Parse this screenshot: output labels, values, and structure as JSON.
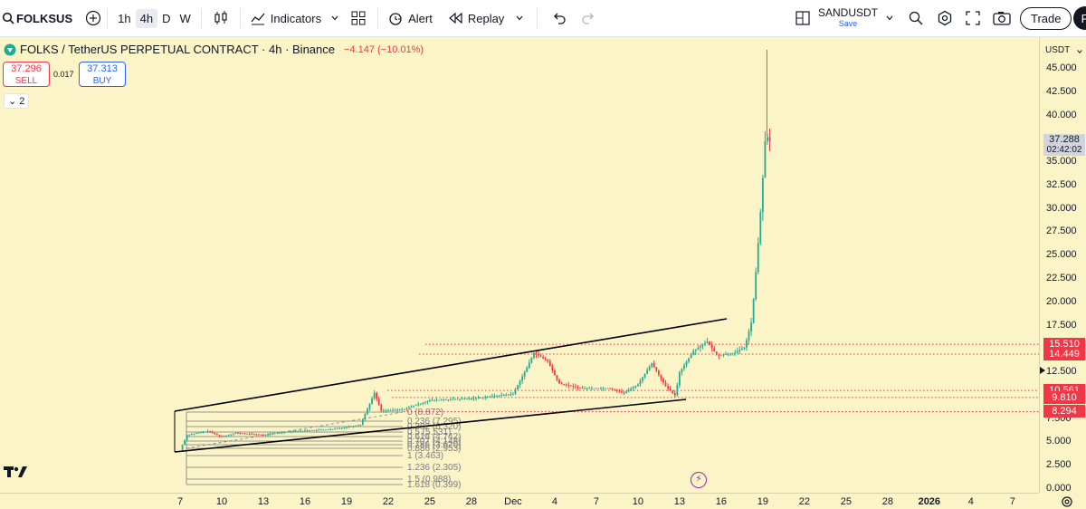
{
  "toolbar": {
    "symbol": "FOLKSUS",
    "intervals": [
      "1h",
      "4h",
      "D",
      "W"
    ],
    "active_interval": "4h",
    "indicators_label": "Indicators",
    "alert_label": "Alert",
    "replay_label": "Replay",
    "layout_name": "SANDUSDT",
    "layout_status": "Save",
    "trade_label": "Trade",
    "avatar_letter": "P"
  },
  "legend": {
    "title": "FOLKS / TetherUS PERPETUAL CONTRACT · 4h · Binance",
    "change": "−4.147 (−10.01%)",
    "sell_price": "37.296",
    "sell_label": "SELL",
    "spread": "0.017",
    "buy_price": "37.313",
    "buy_label": "BUY",
    "collapsed_count": "2"
  },
  "price_axis": {
    "currency": "USDT",
    "ticks": [
      "45.000",
      "42.500",
      "40.000",
      "37.500",
      "35.000",
      "32.500",
      "30.000",
      "27.500",
      "25.000",
      "22.500",
      "20.000",
      "17.500",
      "15.000",
      "12.500",
      "10.000",
      "7.500",
      "5.000",
      "2.500",
      "0.000"
    ],
    "tick_values": [
      45,
      42.5,
      40,
      37.5,
      35,
      32.5,
      30,
      27.5,
      25,
      22.5,
      20,
      17.5,
      15,
      12.5,
      10,
      7.5,
      5,
      2.5,
      0
    ],
    "current_price": "37.288",
    "countdown": "02:42:02",
    "level_tags": [
      {
        "label": "15.510",
        "value": 15.51
      },
      {
        "label": "14.449",
        "value": 14.449
      },
      {
        "label": "10.561",
        "value": 10.561
      },
      {
        "label": "9.810",
        "value": 9.81
      },
      {
        "label": "8.294",
        "value": 8.294
      }
    ]
  },
  "time_axis": {
    "labels": [
      "7",
      "10",
      "13",
      "16",
      "19",
      "22",
      "25",
      "28",
      "Dec",
      "4",
      "7",
      "10",
      "13",
      "16",
      "19",
      "22",
      "25",
      "28",
      "2026",
      "4",
      "7"
    ]
  },
  "fib_labels": [
    "0 (8.872)",
    "0.236 (7.295)",
    "0.382 (6.320)",
    "0.5 (5.531)",
    "0.618 (4.742)",
    "0.707 (4.148)",
    "0.786 (3.620)",
    "0.886 (2.953)",
    "1 (3.463)",
    "1.236 (2.305)",
    "1.5 (0.988)",
    "1.618 (0.399)"
  ],
  "colors": {
    "background": "#fbf4c7",
    "up": "#22ab94",
    "down": "#f23645",
    "level": "#f23645",
    "trendline": "#000000"
  },
  "chart_data": {
    "type": "line",
    "title": "FOLKS / TetherUS PERPETUAL CONTRACT · 4h · Binance",
    "xlabel": "",
    "ylabel": "",
    "ylim": [
      0,
      47.5
    ],
    "x_unit": "date (Nov 2025 – Jan 2026)",
    "series": [
      {
        "x": [
          "Nov 7",
          "Nov 9",
          "Nov 12",
          "Nov 15",
          "Nov 18",
          "Nov 21",
          "Nov 21.5",
          "Nov 24",
          "Nov 27",
          "Nov 30",
          "Dec 1",
          "Dec 2",
          "Dec 3",
          "Dec 5",
          "Dec 8",
          "Dec 9",
          "Dec 10",
          "Dec 11",
          "Dec 12",
          "Dec 13",
          "Dec 13.5",
          "Dec 14",
          "Dec 14.3"
        ],
        "values": [
          4.2,
          6.0,
          5.7,
          6.2,
          6.3,
          7.0,
          10.3,
          8.8,
          9.5,
          9.6,
          10.0,
          14.5,
          13.5,
          11.2,
          10.8,
          12.5,
          14.8,
          15.5,
          14.6,
          14.9,
          18.0,
          30.0,
          37.288
        ]
      }
    ],
    "horizontal_levels": [
      15.51,
      14.449,
      10.561,
      9.81,
      8.294
    ]
  }
}
